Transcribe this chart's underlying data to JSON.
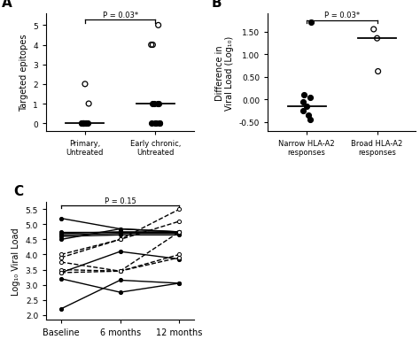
{
  "panel_A": {
    "group1_label": "Primary,\nUntreated",
    "group2_label": "Early chronic,\nUntreated",
    "ylabel": "Targeted epitopes",
    "yticks": [
      0,
      1,
      2,
      3,
      4,
      5
    ],
    "ylim": [
      -0.4,
      5.6
    ],
    "group1_open": [
      2.0,
      1.0
    ],
    "group1_closed": [
      0,
      0,
      0,
      0,
      0,
      0,
      0,
      0,
      0,
      0,
      0,
      0,
      0
    ],
    "group1_median": 0,
    "group2_open": [
      4.0,
      4.0,
      5.0
    ],
    "group2_closed": [
      0,
      0,
      0,
      0,
      0,
      1,
      1,
      1,
      1
    ],
    "group2_median": 1,
    "pval_text": "P = 0.03*"
  },
  "panel_B": {
    "group1_label": "Narrow HLA-A2\nresponses",
    "group2_label": "Broad HLA-A2\nresponses",
    "ylabel": "Difference in\nViral Load (Log₁₀)",
    "yticks": [
      -0.5,
      0.0,
      0.5,
      1.0,
      1.5
    ],
    "ytick_labels": [
      "-0.50",
      "0.00",
      "0.50",
      "1.00",
      "1.50"
    ],
    "ylim": [
      -0.7,
      1.9
    ],
    "group1_closed": [
      1.7,
      0.1,
      0.05,
      -0.05,
      -0.15,
      -0.25,
      -0.35,
      -0.45
    ],
    "group1_median": -0.15,
    "group2_open": [
      1.55,
      1.35,
      0.62
    ],
    "group2_median": 1.35,
    "pval_text": "P = 0.03*"
  },
  "panel_C": {
    "xlabel_ticks": [
      "Baseline",
      "6 months",
      "12 months"
    ],
    "ylabel": "Log₁₀ Viral Load",
    "yticks": [
      2.0,
      2.5,
      3.0,
      3.5,
      4.0,
      4.5,
      5.0,
      5.5
    ],
    "ylim": [
      1.85,
      5.75
    ],
    "pval_text": "P = 0.15",
    "solid_lines": [
      [
        5.2,
        4.85,
        4.75
      ],
      [
        4.75,
        4.75,
        4.75
      ],
      [
        4.7,
        4.75,
        4.75
      ],
      [
        4.65,
        4.7,
        4.7
      ],
      [
        4.6,
        4.65,
        4.65
      ],
      [
        4.5,
        4.85,
        4.75
      ],
      [
        3.4,
        4.1,
        3.85
      ],
      [
        3.2,
        2.75,
        3.05
      ],
      [
        2.2,
        3.15,
        3.05
      ]
    ],
    "dashed_lines": [
      [
        4.0,
        4.5,
        5.5
      ],
      [
        3.9,
        4.5,
        5.1
      ],
      [
        3.75,
        3.45,
        4.0
      ],
      [
        3.5,
        3.45,
        3.9
      ],
      [
        3.4,
        3.45,
        4.75
      ]
    ]
  }
}
